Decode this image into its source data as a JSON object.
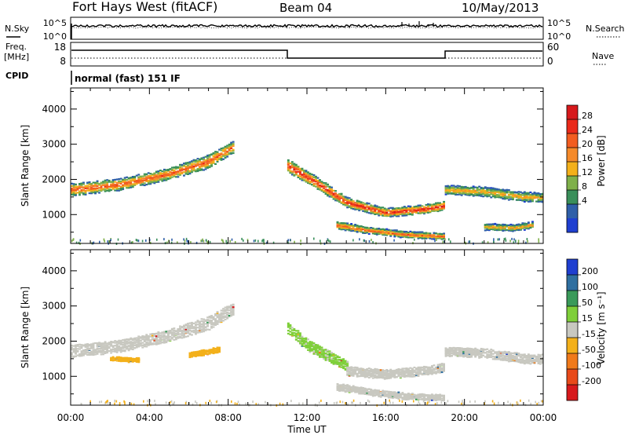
{
  "header": {
    "station": "Fort Hays West (fitACF)",
    "beam": "Beam 04",
    "date": "10/May/2013"
  },
  "top_panels": {
    "nsky_label": "N.Sky",
    "nsearch_label": "N.Search",
    "noise_ticks": [
      "10^5",
      "10^0"
    ],
    "freq_label_line1": "Freq.",
    "freq_label_line2": "[MHz]",
    "freq_ticks": [
      18,
      8
    ],
    "nave_label": "Nave",
    "nave_ticks": [
      60,
      0
    ],
    "cpid_label": "CPID",
    "cpid_text": "normal (fast) 151 IF"
  },
  "power_colorbar": {
    "label": "Power [dB]",
    "ticks": [
      "28",
      "24",
      "20",
      "16",
      "12",
      "8",
      "4"
    ],
    "colors": [
      "#d7191c",
      "#ea2a1a",
      "#f25d20",
      "#f58a2a",
      "#f3b01a",
      "#7fb04a",
      "#3a8f5a",
      "#2f5fa8",
      "#1f3fd0"
    ]
  },
  "velocity_colorbar": {
    "label": "Velocity [m s⁻¹]",
    "ticks": [
      "200",
      "100",
      "50",
      "15",
      "-15",
      "-50",
      "-100",
      "-200"
    ],
    "colors": [
      "#1f3fd0",
      "#2f6fa0",
      "#3a9a5a",
      "#7fcf3a",
      "#c8c8c0",
      "#f3b01a",
      "#f07a1a",
      "#e84a1a",
      "#d7191c"
    ]
  },
  "chart_data": [
    {
      "type": "heatmap",
      "name": "power",
      "xlabel": "",
      "ylabel": "Slant Range [km]",
      "xlim": [
        0,
        24
      ],
      "ylim": [
        180,
        4600
      ],
      "yticks": [
        1000,
        2000,
        3000,
        4000
      ],
      "colorbar_label": "Power [dB]",
      "colorbar_range": [
        0,
        30
      ],
      "bands": [
        {
          "x": [
            0.0,
            2.5,
            5.0,
            7.0,
            8.2
          ],
          "y": [
            1700,
            1850,
            2150,
            2500,
            2900
          ],
          "width": [
            320,
            300,
            300,
            350,
            300
          ],
          "core_db": 24
        },
        {
          "x": [
            11.0,
            12.5,
            14.0,
            16.0,
            18.0,
            19.0
          ],
          "y": [
            2400,
            1900,
            1350,
            1050,
            1150,
            1250
          ],
          "width": [
            350,
            300,
            250,
            220,
            220,
            220
          ],
          "core_db": 28
        },
        {
          "x": [
            13.5,
            15.0,
            17.0,
            19.0
          ],
          "y": [
            700,
            560,
            430,
            380
          ],
          "width": [
            180,
            160,
            150,
            150
          ],
          "core_db": 24
        },
        {
          "x": [
            19.0,
            21.0,
            23.0,
            24.0
          ],
          "y": [
            1700,
            1650,
            1500,
            1480
          ],
          "width": [
            220,
            240,
            240,
            240
          ],
          "core_db": 18
        },
        {
          "x": [
            21.0,
            22.5,
            23.5
          ],
          "y": [
            650,
            620,
            700
          ],
          "width": [
            160,
            160,
            160
          ],
          "core_db": 18
        }
      ]
    },
    {
      "type": "heatmap",
      "name": "velocity",
      "xlabel": "Time UT",
      "ylabel": "Slant Range [km]",
      "xlim": [
        0,
        24
      ],
      "ylim": [
        180,
        4600
      ],
      "xtick_labels": [
        "00:00",
        "04:00",
        "08:00",
        "12:00",
        "16:00",
        "20:00",
        "00:00"
      ],
      "yticks": [
        1000,
        2000,
        3000,
        4000
      ],
      "colorbar_label": "Velocity [m s⁻¹]",
      "colorbar_range": [
        -200,
        200
      ],
      "bands": [
        {
          "x": [
            0.0,
            2.5,
            5.0,
            7.0,
            8.2
          ],
          "y": [
            1700,
            1850,
            2150,
            2500,
            2900
          ],
          "width": [
            320,
            300,
            300,
            350,
            300
          ],
          "velocity": 0
        },
        {
          "x": [
            11.0,
            12.0,
            13.0,
            14.0
          ],
          "y": [
            2400,
            1900,
            1600,
            1300
          ],
          "width": [
            300,
            300,
            280,
            260
          ],
          "velocity": 30
        },
        {
          "x": [
            14.0,
            16.0,
            18.0,
            19.0
          ],
          "y": [
            1150,
            1050,
            1150,
            1250
          ],
          "width": [
            240,
            220,
            220,
            220
          ],
          "velocity": 0
        },
        {
          "x": [
            13.5,
            15.0,
            17.0,
            19.0
          ],
          "y": [
            700,
            560,
            430,
            380
          ],
          "width": [
            180,
            160,
            150,
            150
          ],
          "velocity": 0
        },
        {
          "x": [
            19.0,
            21.0,
            23.0,
            24.0
          ],
          "y": [
            1700,
            1650,
            1500,
            1480
          ],
          "width": [
            220,
            240,
            240,
            240
          ],
          "velocity": 0
        },
        {
          "x": [
            6.0,
            7.5
          ],
          "y": [
            1600,
            1750
          ],
          "width": [
            120,
            120
          ],
          "velocity": -50
        },
        {
          "x": [
            2.0,
            3.5
          ],
          "y": [
            1500,
            1450
          ],
          "width": [
            100,
            100
          ],
          "velocity": -50
        }
      ]
    }
  ]
}
